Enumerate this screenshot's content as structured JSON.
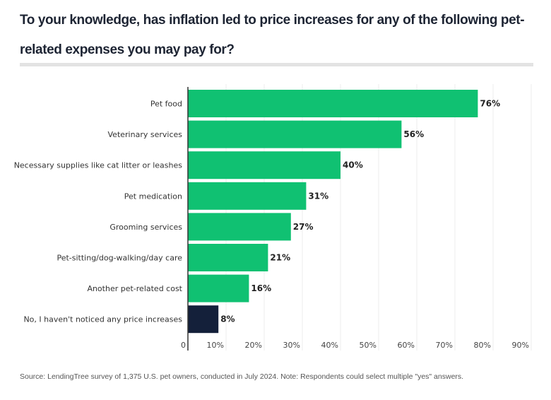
{
  "chart_data": {
    "type": "bar",
    "orientation": "horizontal",
    "title": "To your knowledge, has inflation led to price increases for any of the following pet-related expenses you may pay for?",
    "categories": [
      "Pet food",
      "Veterinary services",
      "Necessary supplies like cat litter or leashes",
      "Pet medication",
      "Grooming services",
      "Pet-sitting/dog-walking/day care",
      "Another pet-related cost",
      "No, I haven't noticed any price increases"
    ],
    "values": [
      76,
      56,
      40,
      31,
      27,
      21,
      16,
      8
    ],
    "data_labels": [
      "76%",
      "56%",
      "40%",
      "31%",
      "27%",
      "21%",
      "16%",
      "8%"
    ],
    "colors": [
      "#10c172",
      "#10c172",
      "#10c172",
      "#10c172",
      "#10c172",
      "#10c172",
      "#10c172",
      "#14203a"
    ],
    "xlim": [
      0,
      90
    ],
    "x_ticks": [
      "0",
      "10%",
      "20%",
      "30%",
      "40%",
      "50%",
      "60%",
      "70%",
      "80%",
      "90%"
    ],
    "grid": true,
    "source": "Source: LendingTree survey of 1,375 U.S. pet owners, conducted in July 2024. Note: Respondents could select multiple \"yes\" answers."
  }
}
